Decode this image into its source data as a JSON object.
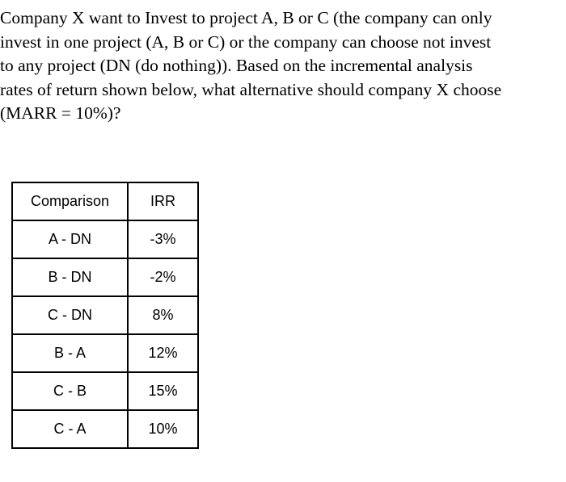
{
  "question": {
    "lines": [
      " Company X want to Invest to project A, B or C (the company can only",
      "invest in one project (A, B or C) or the company can choose not invest",
      "to any project (DN (do nothing)). Based on the incremental analysis",
      "rates of return shown below, what alternative should company X choose",
      "(MARR = 10%)?"
    ]
  },
  "table": {
    "headers": [
      "Comparison",
      "IRR"
    ],
    "rows": [
      [
        "A - DN",
        "-3%"
      ],
      [
        "B - DN",
        "-2%"
      ],
      [
        "C - DN",
        "8%"
      ],
      [
        "B - A",
        "12%"
      ],
      [
        "C - B",
        "15%"
      ],
      [
        "C - A",
        "10%"
      ]
    ]
  }
}
